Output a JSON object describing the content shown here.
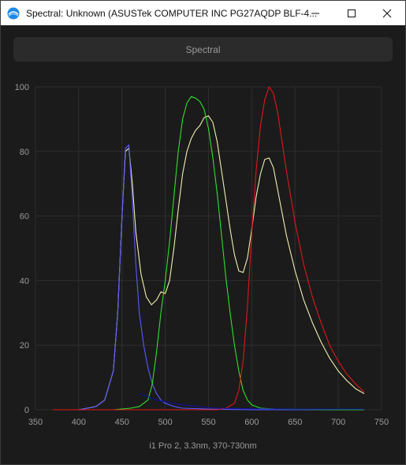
{
  "window": {
    "title": "Spectral: Unknown (ASUSTek COMPUTER INC PG27AQDP BLF-4...",
    "app_icon": "spectrum-app-icon",
    "buttons": [
      "minimize-icon",
      "maximize-icon",
      "close-icon"
    ]
  },
  "tab": {
    "label": "Spectral"
  },
  "caption": "i1 Pro 2, 3.3nm, 370-730nm",
  "colors": {
    "blue": "#5a5aff",
    "green": "#2ee02e",
    "red": "#e01818",
    "white": "#f0efb0",
    "navy": "#1010a0",
    "grid": "#2e2e2e",
    "text": "#9a9a9a"
  },
  "chart_data": {
    "type": "line",
    "title": "",
    "xlabel": "",
    "ylabel": "",
    "xlim": [
      350,
      750
    ],
    "ylim": [
      0,
      100
    ],
    "xticks": [
      "350",
      "400",
      "450",
      "500",
      "550",
      "600",
      "650",
      "700",
      "750"
    ],
    "yticks": [
      "0",
      "20",
      "40",
      "60",
      "80",
      "100"
    ],
    "grid": true,
    "series": [
      {
        "color": "white",
        "points": [
          [
            370,
            0
          ],
          [
            400,
            0
          ],
          [
            420,
            1
          ],
          [
            430,
            3
          ],
          [
            440,
            12
          ],
          [
            445,
            30
          ],
          [
            450,
            60
          ],
          [
            454,
            80
          ],
          [
            458,
            81
          ],
          [
            462,
            70
          ],
          [
            466,
            55
          ],
          [
            472,
            42
          ],
          [
            478,
            35
          ],
          [
            484,
            32.5
          ],
          [
            490,
            34
          ],
          [
            495,
            36.5
          ],
          [
            500,
            36
          ],
          [
            505,
            40
          ],
          [
            510,
            50
          ],
          [
            515,
            62
          ],
          [
            520,
            73
          ],
          [
            525,
            80
          ],
          [
            530,
            84
          ],
          [
            535,
            86.5
          ],
          [
            540,
            88
          ],
          [
            545,
            90.5
          ],
          [
            550,
            91
          ],
          [
            555,
            89
          ],
          [
            560,
            83
          ],
          [
            565,
            74
          ],
          [
            570,
            65
          ],
          [
            575,
            56
          ],
          [
            580,
            48
          ],
          [
            585,
            43
          ],
          [
            590,
            42.5
          ],
          [
            595,
            47
          ],
          [
            600,
            56
          ],
          [
            605,
            66
          ],
          [
            610,
            73
          ],
          [
            615,
            77.5
          ],
          [
            620,
            78
          ],
          [
            625,
            75
          ],
          [
            630,
            68
          ],
          [
            640,
            54
          ],
          [
            650,
            43
          ],
          [
            660,
            34
          ],
          [
            670,
            27
          ],
          [
            680,
            21
          ],
          [
            690,
            16
          ],
          [
            700,
            12
          ],
          [
            710,
            9
          ],
          [
            720,
            6.5
          ],
          [
            730,
            5
          ]
        ]
      },
      {
        "color": "blue",
        "points": [
          [
            370,
            0
          ],
          [
            400,
            0
          ],
          [
            420,
            1
          ],
          [
            430,
            3
          ],
          [
            440,
            12
          ],
          [
            445,
            30
          ],
          [
            450,
            60
          ],
          [
            454,
            81
          ],
          [
            458,
            82
          ],
          [
            462,
            65
          ],
          [
            466,
            45
          ],
          [
            470,
            30
          ],
          [
            475,
            20
          ],
          [
            480,
            13
          ],
          [
            485,
            8
          ],
          [
            490,
            5
          ],
          [
            495,
            3
          ],
          [
            500,
            2
          ],
          [
            510,
            1
          ],
          [
            520,
            0.5
          ],
          [
            550,
            0.2
          ],
          [
            600,
            0
          ],
          [
            650,
            0
          ],
          [
            730,
            0
          ]
        ]
      },
      {
        "color": "green",
        "points": [
          [
            370,
            0
          ],
          [
            440,
            0
          ],
          [
            460,
            0.5
          ],
          [
            470,
            1
          ],
          [
            480,
            3
          ],
          [
            485,
            8
          ],
          [
            490,
            18
          ],
          [
            495,
            30
          ],
          [
            500,
            40
          ],
          [
            505,
            52
          ],
          [
            510,
            66
          ],
          [
            515,
            80
          ],
          [
            520,
            90
          ],
          [
            525,
            95
          ],
          [
            530,
            97
          ],
          [
            535,
            96.5
          ],
          [
            540,
            95.5
          ],
          [
            545,
            93
          ],
          [
            550,
            87
          ],
          [
            555,
            78
          ],
          [
            560,
            67
          ],
          [
            565,
            54
          ],
          [
            570,
            41
          ],
          [
            575,
            30
          ],
          [
            580,
            20
          ],
          [
            585,
            12
          ],
          [
            590,
            6
          ],
          [
            595,
            3
          ],
          [
            600,
            1.5
          ],
          [
            610,
            0.5
          ],
          [
            630,
            0.2
          ],
          [
            700,
            0
          ],
          [
            730,
            0
          ]
        ]
      },
      {
        "color": "red",
        "points": [
          [
            370,
            0
          ],
          [
            560,
            0
          ],
          [
            570,
            0.5
          ],
          [
            580,
            2
          ],
          [
            585,
            6
          ],
          [
            590,
            15
          ],
          [
            595,
            32
          ],
          [
            600,
            55
          ],
          [
            605,
            74
          ],
          [
            610,
            88
          ],
          [
            615,
            96
          ],
          [
            620,
            100
          ],
          [
            625,
            98
          ],
          [
            630,
            92
          ],
          [
            640,
            74
          ],
          [
            650,
            58
          ],
          [
            660,
            45
          ],
          [
            670,
            35
          ],
          [
            680,
            27
          ],
          [
            690,
            20
          ],
          [
            700,
            15
          ],
          [
            710,
            11
          ],
          [
            720,
            8
          ],
          [
            730,
            5.5
          ]
        ]
      },
      {
        "color": "navy",
        "points": [
          [
            470,
            5
          ],
          [
            490,
            3
          ],
          [
            520,
            1.5
          ],
          [
            560,
            0.5
          ],
          [
            600,
            0.3
          ],
          [
            650,
            0.2
          ],
          [
            730,
            0.2
          ]
        ]
      }
    ]
  }
}
